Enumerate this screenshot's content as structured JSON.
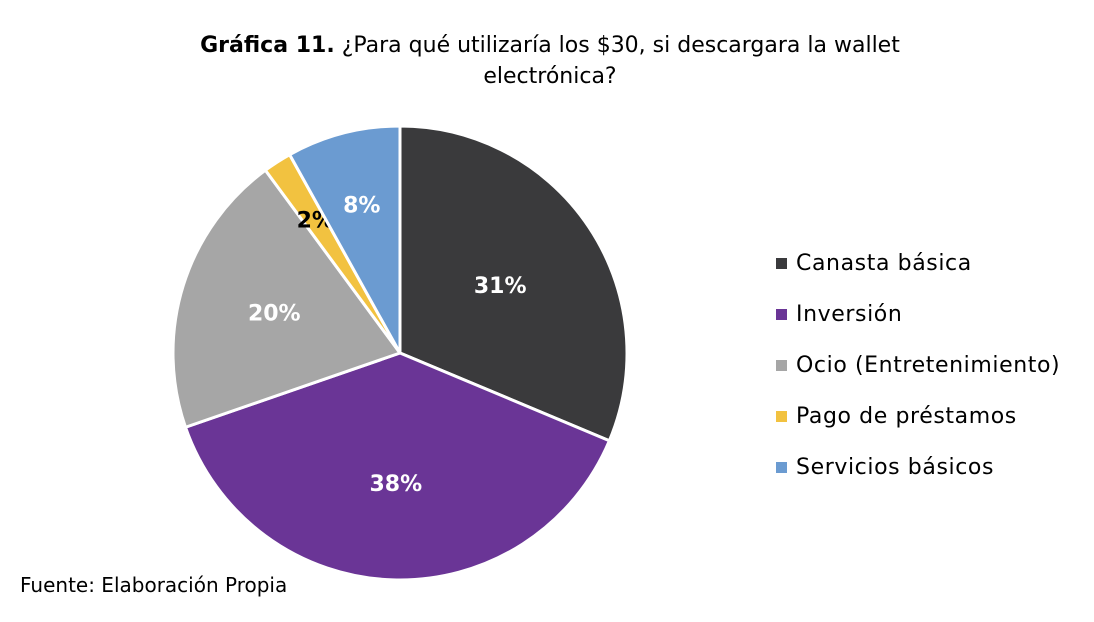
{
  "title": {
    "prefix": "Gráfica 11.",
    "text": "¿Para qué utilizaría los $30, si descargara la wallet electrónica?"
  },
  "chart_data": {
    "type": "pie",
    "categories": [
      "Canasta básica",
      "Inversión",
      "Ocio (Entretenimiento)",
      "Pago de préstamos",
      "Servicios básicos"
    ],
    "values": [
      31,
      38,
      20,
      2,
      8
    ],
    "labels": [
      "31%",
      "38%",
      "20%",
      "2%",
      "8%"
    ],
    "colors": [
      "#3a3a3c",
      "#6a3596",
      "#a6a6a6",
      "#f2c240",
      "#6b9bd1"
    ],
    "label_colors": [
      "#ffffff",
      "#ffffff",
      "#ffffff",
      "#000000",
      "#ffffff"
    ],
    "legend_position": "right"
  },
  "source": "Fuente: Elaboración Propia"
}
